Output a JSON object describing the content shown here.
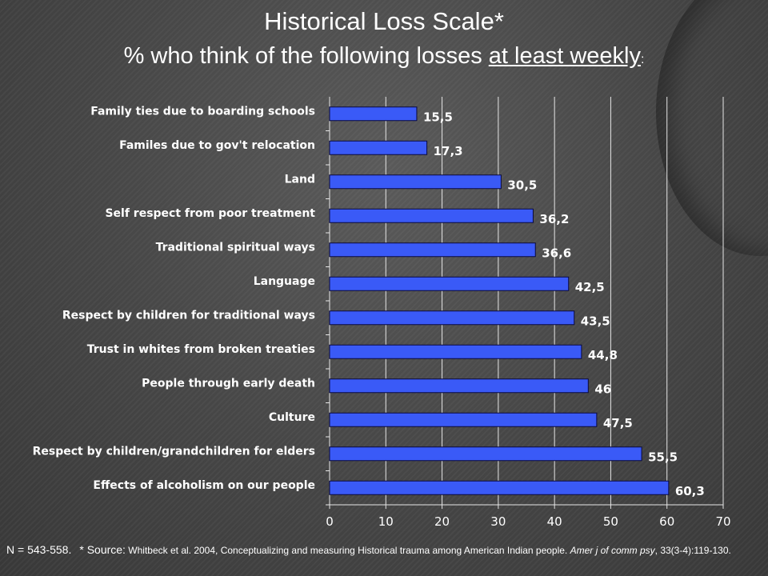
{
  "slide": {
    "title": "Historical Loss Scale*",
    "subtitle_prefix": "% who think of the following losses ",
    "subtitle_underlined": "at least weekly",
    "subtitle_suffix": ":"
  },
  "footnote": {
    "n": "N = 543-558.",
    "source_label": "* Source:",
    "source_text": "Whitbeck et al. 2004, Conceptualizing and measuring Historical trauma among American Indian people.",
    "journal_italic": "Amer  j of comm psy",
    "citation_tail": ", 33(3-4):119-130."
  },
  "chart_data": {
    "type": "bar",
    "orientation": "horizontal",
    "categories": [
      "Family ties due to boarding schools",
      "Familes due to gov't relocation",
      "Land",
      "Self respect from poor treatment",
      "Traditional spiritual ways",
      "Language",
      "Respect by children for traditional ways",
      "Trust in whites from broken treaties",
      "People through early death",
      "Culture",
      "Respect by children/grandchildren for elders",
      "Effects of alcoholism on our people"
    ],
    "values": [
      15.5,
      17.3,
      30.5,
      36.2,
      36.6,
      42.5,
      43.5,
      44.8,
      46,
      47.5,
      55.5,
      60.3
    ],
    "value_labels": [
      "15,5",
      "17,3",
      "30,5",
      "36,2",
      "36,6",
      "42,5",
      "43,5",
      "44,8",
      "46",
      "47,5",
      "55,5",
      "60,3"
    ],
    "xlim": [
      0,
      70
    ],
    "xticks": [
      "0",
      "10",
      "20",
      "30",
      "40",
      "50",
      "60",
      "70"
    ],
    "grid": true,
    "legend": "none",
    "bar_color": "#3a5af7"
  }
}
